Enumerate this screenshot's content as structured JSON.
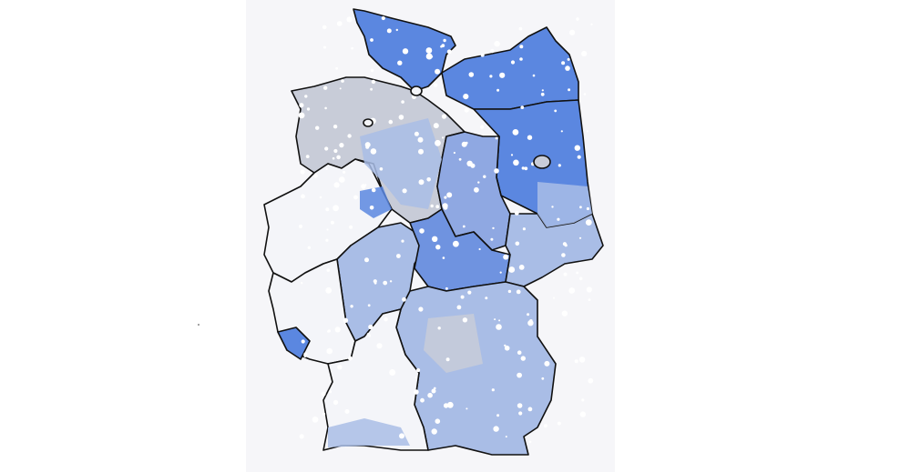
{
  "map": {
    "colors": {
      "panel_background": "#f6f6f9",
      "border": "#111111",
      "high": "#5b87e0",
      "mid_high": "#6f93e0",
      "mid": "#8fa8e2",
      "light": "#a9bde6",
      "grey": "#c8ccd8",
      "none": "#f4f5f9"
    }
  }
}
